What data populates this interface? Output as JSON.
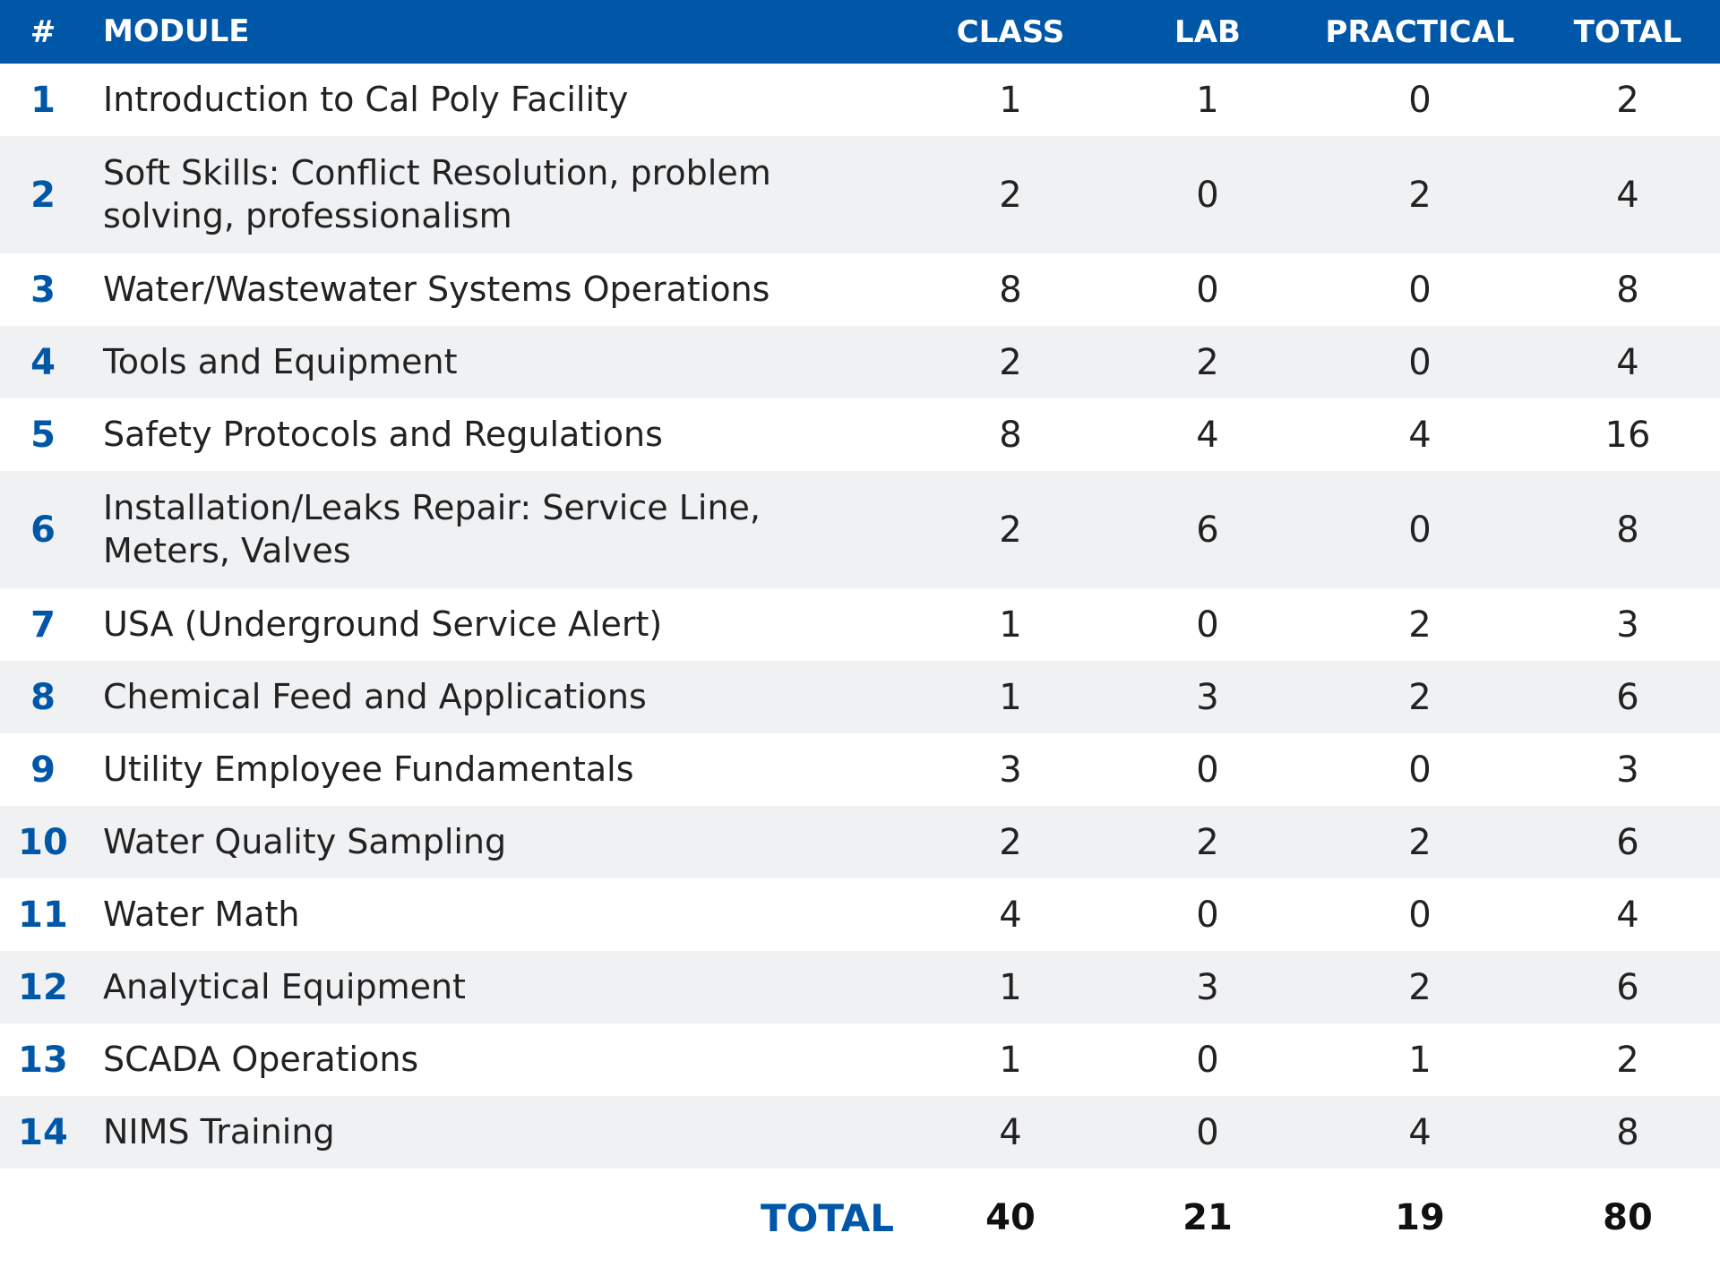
{
  "header": {
    "num": "#",
    "module": "MODULE",
    "class": "CLASS",
    "lab": "LAB",
    "practical": "PRACTICAL",
    "total": "TOTAL"
  },
  "rows": [
    {
      "num": "1",
      "module": "Introduction to Cal Poly Facility",
      "class": "1",
      "lab": "1",
      "practical": "0",
      "total": "2"
    },
    {
      "num": "2",
      "module": "Soft Skills: Conflict Resolution, problem solving, professionalism",
      "class": "2",
      "lab": "0",
      "practical": "2",
      "total": "4"
    },
    {
      "num": "3",
      "module": "Water/Wastewater Systems Operations",
      "class": "8",
      "lab": "0",
      "practical": "0",
      "total": "8"
    },
    {
      "num": "4",
      "module": "Tools and Equipment",
      "class": "2",
      "lab": "2",
      "practical": "0",
      "total": "4"
    },
    {
      "num": "5",
      "module": "Safety Protocols and Regulations",
      "class": "8",
      "lab": "4",
      "practical": "4",
      "total": "16"
    },
    {
      "num": "6",
      "module": "Installation/Leaks Repair: Service Line, Meters, Valves",
      "class": "2",
      "lab": "6",
      "practical": "0",
      "total": "8"
    },
    {
      "num": "7",
      "module": "USA (Underground Service Alert)",
      "class": "1",
      "lab": "0",
      "practical": "2",
      "total": "3"
    },
    {
      "num": "8",
      "module": "Chemical Feed and Applications",
      "class": "1",
      "lab": "3",
      "practical": "2",
      "total": "6"
    },
    {
      "num": "9",
      "module": "Utility Employee Fundamentals",
      "class": "3",
      "lab": "0",
      "practical": "0",
      "total": "3"
    },
    {
      "num": "10",
      "module": "Water Quality Sampling",
      "class": "2",
      "lab": "2",
      "practical": "2",
      "total": "6"
    },
    {
      "num": "11",
      "module": "Water Math",
      "class": "4",
      "lab": "0",
      "practical": "0",
      "total": "4"
    },
    {
      "num": "12",
      "module": "Analytical Equipment",
      "class": "1",
      "lab": "3",
      "practical": "2",
      "total": "6"
    },
    {
      "num": "13",
      "module": "SCADA Operations",
      "class": "1",
      "lab": "0",
      "practical": "1",
      "total": "2"
    },
    {
      "num": "14",
      "module": "NIMS Training",
      "class": "4",
      "lab": "0",
      "practical": "4",
      "total": "8"
    }
  ],
  "totals": {
    "label": "TOTAL",
    "class": "40",
    "lab": "21",
    "practical": "19",
    "total": "80"
  },
  "colors": {
    "accent": "#0057a8",
    "alt_row": "#f0f1f3"
  }
}
